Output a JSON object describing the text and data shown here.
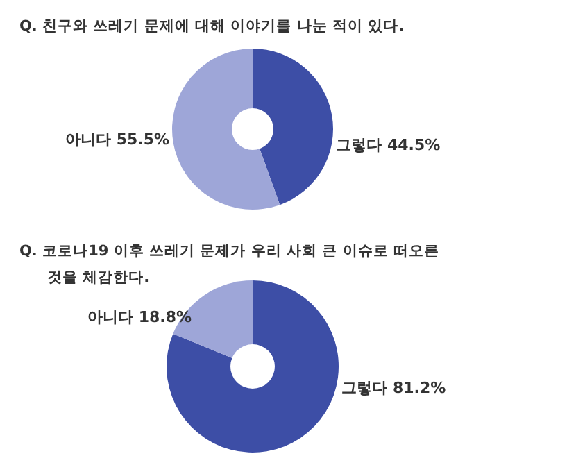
{
  "chart_data": [
    {
      "type": "donut",
      "title": "Q. 친구와 쓰레기 문제에 대해 이야기를 나눈 적이 있다.",
      "categories": [
        "그렇다",
        "아니다"
      ],
      "values": [
        44.5,
        55.5
      ],
      "colors": [
        "#3d4ea6",
        "#9ea6d8"
      ],
      "value_labels": [
        "44.5%",
        "55.5%"
      ]
    },
    {
      "type": "donut",
      "title": "Q. 코로나19 이후 쓰레기 문제가 우리 사회 큰 이슈로 떠오른 것을 체감한다.",
      "categories": [
        "그렇다",
        "아니다"
      ],
      "values": [
        81.2,
        18.8
      ],
      "colors": [
        "#3d4ea6",
        "#9ea6d8"
      ],
      "value_labels": [
        "81.2%",
        "18.8%"
      ]
    }
  ]
}
